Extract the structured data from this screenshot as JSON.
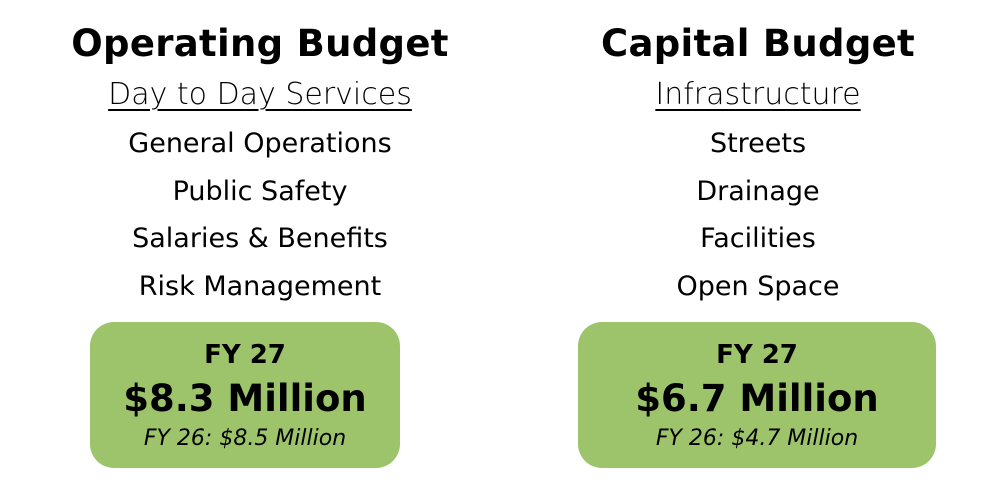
{
  "colors": {
    "box_fill": "#9dc46a",
    "text": "#000000"
  },
  "operating": {
    "title": "Operating Budget",
    "subtitle": "Day to Day Services",
    "items": [
      "General Operations",
      "Public Safety",
      "Salaries & Benefits",
      "Risk Management"
    ],
    "box": {
      "fy": "FY 27",
      "amount": "$8.3 Million",
      "prior": "FY 26: $8.5 Million"
    }
  },
  "capital": {
    "title": "Capital Budget",
    "subtitle": "Infrastructure",
    "items": [
      "Streets",
      "Drainage",
      "Facilities",
      "Open Space"
    ],
    "box": {
      "fy": "FY 27",
      "amount": "$6.7 Million",
      "prior": "FY 26: $4.7 Million"
    }
  }
}
